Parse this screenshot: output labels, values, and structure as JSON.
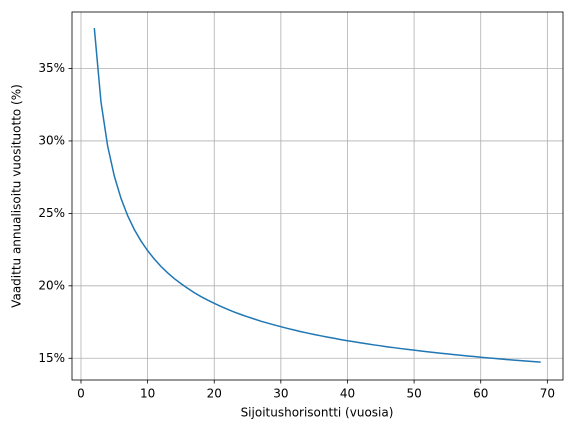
{
  "chart_data": {
    "type": "line",
    "xlabel": "Sijoitushorisontti (vuosia)",
    "ylabel": "Vaadittu annualisoitu vuosituotto (%)",
    "x": [
      2,
      3,
      4,
      5,
      6,
      7,
      8,
      9,
      10,
      11,
      12,
      13,
      14,
      15,
      16,
      17,
      18,
      19,
      20,
      21,
      22,
      23,
      24,
      25,
      26,
      27,
      28,
      29,
      30,
      31,
      32,
      33,
      34,
      35,
      36,
      37,
      38,
      39,
      40,
      41,
      42,
      43,
      44,
      45,
      46,
      47,
      48,
      49,
      50,
      51,
      52,
      53,
      54,
      55,
      56,
      57,
      58,
      59,
      60,
      61,
      62,
      63,
      64,
      65,
      66,
      67,
      68,
      69
    ],
    "series": [
      {
        "color": "#1f77b4",
        "values": [
          37.79,
          32.69,
          29.65,
          27.58,
          26.04,
          24.85,
          23.89,
          23.1,
          22.43,
          21.85,
          21.34,
          20.9,
          20.5,
          20.15,
          19.83,
          19.53,
          19.26,
          19.02,
          18.79,
          18.58,
          18.38,
          18.19,
          18.02,
          17.86,
          17.71,
          17.56,
          17.43,
          17.3,
          17.18,
          17.06,
          16.95,
          16.84,
          16.74,
          16.64,
          16.55,
          16.46,
          16.38,
          16.29,
          16.21,
          16.14,
          16.06,
          15.99,
          15.92,
          15.86,
          15.79,
          15.73,
          15.67,
          15.61,
          15.56,
          15.5,
          15.45,
          15.4,
          15.35,
          15.3,
          15.25,
          15.21,
          15.16,
          15.12,
          15.07,
          15.03,
          14.99,
          14.95,
          14.91,
          14.87,
          14.84,
          14.8,
          14.77,
          14.73
        ]
      }
    ],
    "xlim": [
      -1.35,
      72.35
    ],
    "ylim": [
      13.5,
      38.9
    ],
    "xticks": [
      0,
      10,
      20,
      30,
      40,
      50,
      60,
      70
    ],
    "yticks": [
      {
        "value": 15,
        "label": "15%"
      },
      {
        "value": 20,
        "label": "20%"
      },
      {
        "value": 25,
        "label": "25%"
      },
      {
        "value": 30,
        "label": "30%"
      },
      {
        "value": 35,
        "label": "35%"
      }
    ],
    "grid": true
  }
}
